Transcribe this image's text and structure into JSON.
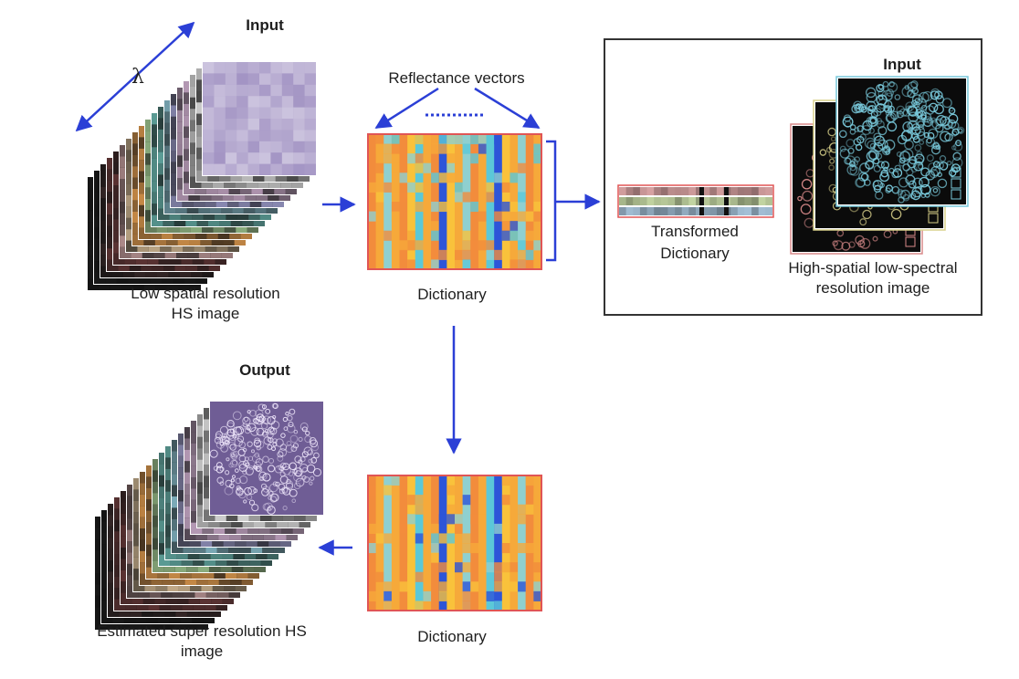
{
  "input_hs": {
    "title": "Input",
    "axis_symbol": "λ",
    "caption_line1": "Low spatial resolution",
    "caption_line2": "HS image"
  },
  "dictionary_top": {
    "header": "Reflectance vectors",
    "caption": "Dictionary"
  },
  "panel_right": {
    "title": "Input",
    "transformed_line1": "Transformed",
    "transformed_line2": "Dictionary",
    "caption_line1": "High-spatial low-spectral",
    "caption_line2": "resolution image"
  },
  "output_hs": {
    "title": "Output",
    "caption_line1": "Estimated super resolution HS",
    "caption_line2": "image"
  },
  "dictionary_bottom": {
    "caption": "Dictionary"
  },
  "colors": {
    "arrow": "#2b3fd6",
    "frame": "#e05555",
    "dictionary_columns": [
      "#f28c3c",
      "#f6a93a",
      "#8fd0d0",
      "#f6a93a",
      "#f28c3c",
      "#f9c23b",
      "#5bc8d8",
      "#f6a93a",
      "#f28c3c",
      "#2d55d8",
      "#f9c23b",
      "#f6a93a",
      "#8fd0d0",
      "#f28c3c",
      "#f6a93a",
      "#5bc8d8",
      "#2d55d8",
      "#f9c23b",
      "#f6a93a",
      "#8fd0d0",
      "#f28c3c",
      "#f6a93a"
    ],
    "stack_tints": [
      "#1a1a1a",
      "#3a2a2a",
      "#6a3a3a",
      "#c8a0a0",
      "#e4c8a0",
      "#e8a050",
      "#a0c890",
      "#6ab8b0",
      "#90c8d8",
      "#a0a0d0",
      "#d0b0d0",
      "#e0e0e0",
      "#f0f0f0"
    ],
    "input_purple": "#a394c4",
    "output_purple": "#6f5d95",
    "rgb_layers": [
      "#d88a8a",
      "#d8d08a",
      "#79c9db"
    ]
  }
}
